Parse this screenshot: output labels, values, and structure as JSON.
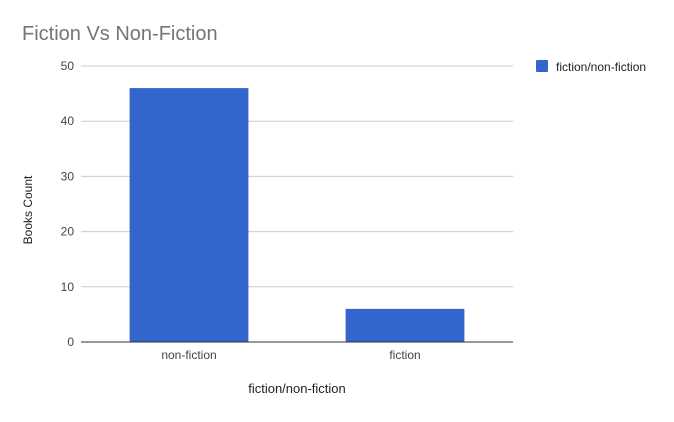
{
  "chart_data": {
    "type": "bar",
    "title": "Fiction Vs Non-Fiction",
    "xlabel": "fiction/non-fiction",
    "ylabel": "Books Count",
    "categories": [
      "non-fiction",
      "fiction"
    ],
    "series": [
      {
        "name": "fiction/non-fiction",
        "values": [
          46,
          6
        ],
        "color": "#3366cc"
      }
    ],
    "ylim": [
      0,
      50
    ],
    "yticks": [
      0,
      10,
      20,
      30,
      40,
      50
    ],
    "grid": true,
    "legend_position": "right"
  }
}
